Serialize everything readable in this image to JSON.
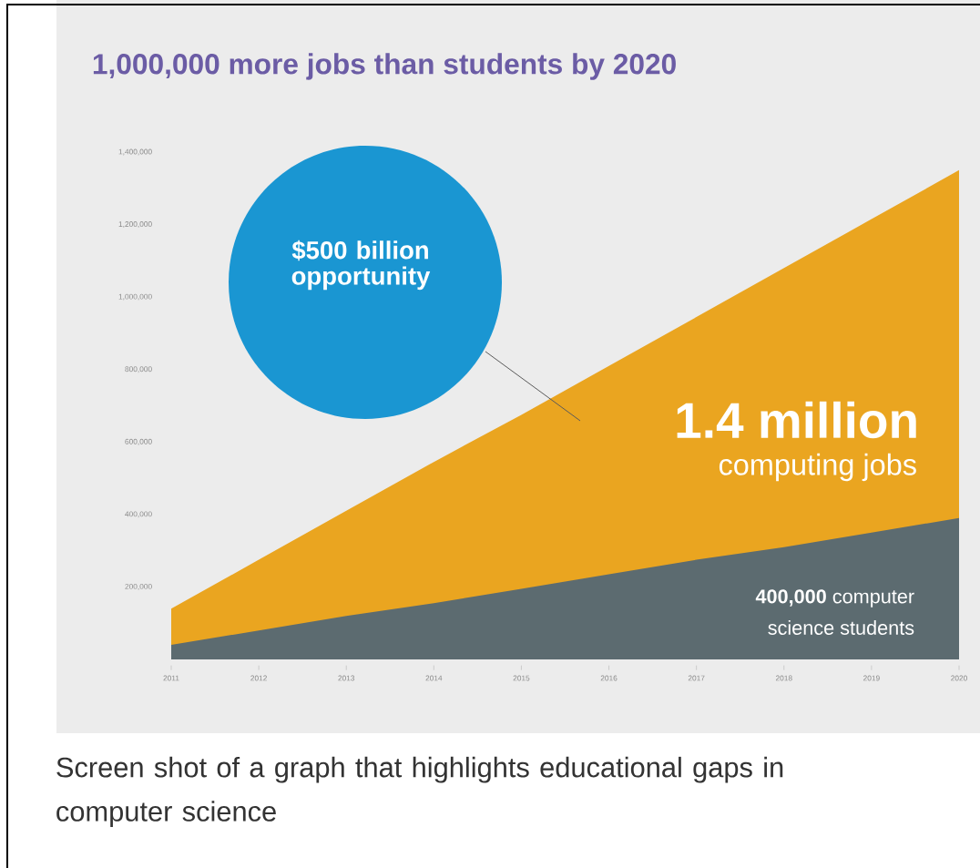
{
  "chart_data": {
    "type": "area",
    "title": "1,000,000 more jobs than students by 2020",
    "categories": [
      "2011",
      "2012",
      "2013",
      "2014",
      "2015",
      "2016",
      "2017",
      "2018",
      "2019",
      "2020"
    ],
    "ylim": [
      0,
      1400000
    ],
    "yticks": [
      {
        "value": 200000,
        "label": "200,000"
      },
      {
        "value": 400000,
        "label": "400,000"
      },
      {
        "value": 600000,
        "label": "600,000"
      },
      {
        "value": 800000,
        "label": "800,000"
      },
      {
        "value": 1000000,
        "label": "1,000,000"
      },
      {
        "value": 1200000,
        "label": "1,200,000"
      },
      {
        "value": 1400000,
        "label": "1,400,000"
      }
    ],
    "grid": false,
    "series": [
      {
        "color": "#eaa520",
        "values": [
          140000,
          275000,
          410000,
          545000,
          675000,
          810000,
          945000,
          1080000,
          1215000,
          1350000
        ]
      },
      {
        "color": "#5c6b70",
        "values": [
          40000,
          80000,
          120000,
          155000,
          195000,
          235000,
          275000,
          310000,
          350000,
          390000
        ]
      }
    ],
    "annotations": [
      "$500 billion opportunity",
      "1.4 million",
      "computing jobs",
      "**400,000** computer",
      "science students",
      "Screen shot of a graph that highlights educational gaps in computer science"
    ]
  }
}
